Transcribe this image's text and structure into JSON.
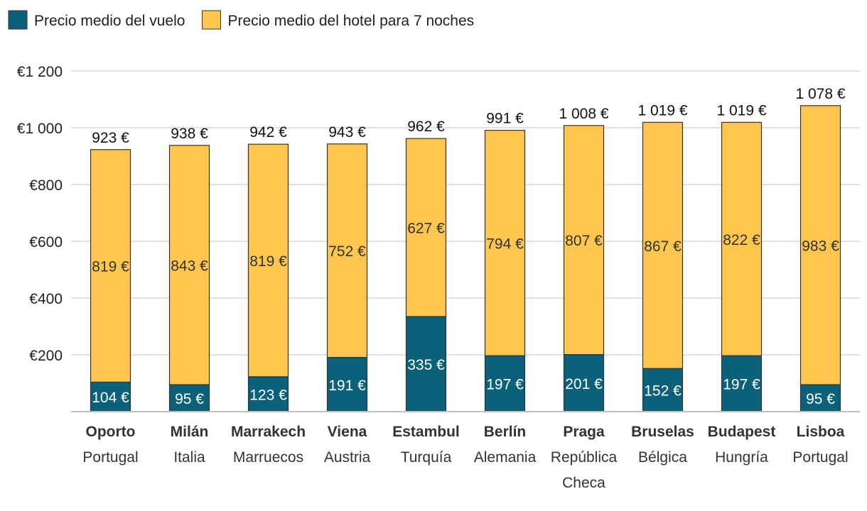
{
  "chart_data": {
    "type": "bar",
    "stacked": true,
    "title": "",
    "xlabel": "",
    "ylabel": "",
    "ylim": [
      0,
      1200
    ],
    "yticks": [
      {
        "value": 200,
        "label": "€200"
      },
      {
        "value": 400,
        "label": "€400"
      },
      {
        "value": 600,
        "label": "€600"
      },
      {
        "value": 800,
        "label": "€800"
      },
      {
        "value": 1000,
        "label": "€1 000"
      },
      {
        "value": 1200,
        "label": "€1 200"
      }
    ],
    "grid": true,
    "legend_position": "top-left",
    "categories": [
      {
        "city": "Oporto",
        "country": [
          "Portugal"
        ]
      },
      {
        "city": "Milán",
        "country": [
          "Italia"
        ]
      },
      {
        "city": "Marrakech",
        "country": [
          "Marruecos"
        ]
      },
      {
        "city": "Viena",
        "country": [
          "Austria"
        ]
      },
      {
        "city": "Estambul",
        "country": [
          "Turquía"
        ]
      },
      {
        "city": "Berlín",
        "country": [
          "Alemania"
        ]
      },
      {
        "city": "Praga",
        "country": [
          "República",
          "Checa"
        ]
      },
      {
        "city": "Bruselas",
        "country": [
          "Bélgica"
        ]
      },
      {
        "city": "Budapest",
        "country": [
          "Hungría"
        ]
      },
      {
        "city": "Lisboa",
        "country": [
          "Portugal"
        ]
      }
    ],
    "series": [
      {
        "name": "Precio medio del vuelo",
        "color": "#0b6179",
        "values": [
          104,
          95,
          123,
          191,
          335,
          197,
          201,
          152,
          197,
          95
        ],
        "labels": [
          "104 €",
          "95 €",
          "123 €",
          "191 €",
          "335 €",
          "197 €",
          "201 €",
          "152 €",
          "197 €",
          "95 €"
        ]
      },
      {
        "name": "Precio medio del hotel para 7 noches",
        "color": "#ffc64f",
        "values": [
          819,
          843,
          819,
          752,
          627,
          794,
          807,
          867,
          822,
          983
        ],
        "labels": [
          "819 €",
          "843 €",
          "819 €",
          "752 €",
          "627 €",
          "794 €",
          "807 €",
          "867 €",
          "822 €",
          "983 €"
        ]
      }
    ],
    "totals": [
      923,
      938,
      942,
      943,
      962,
      991,
      1008,
      1019,
      1019,
      1078
    ],
    "total_labels": [
      "923 €",
      "938 €",
      "942 €",
      "943 €",
      "962 €",
      "991 €",
      "1 008 €",
      "1 019 €",
      "1 019 €",
      "1 078 €"
    ]
  }
}
